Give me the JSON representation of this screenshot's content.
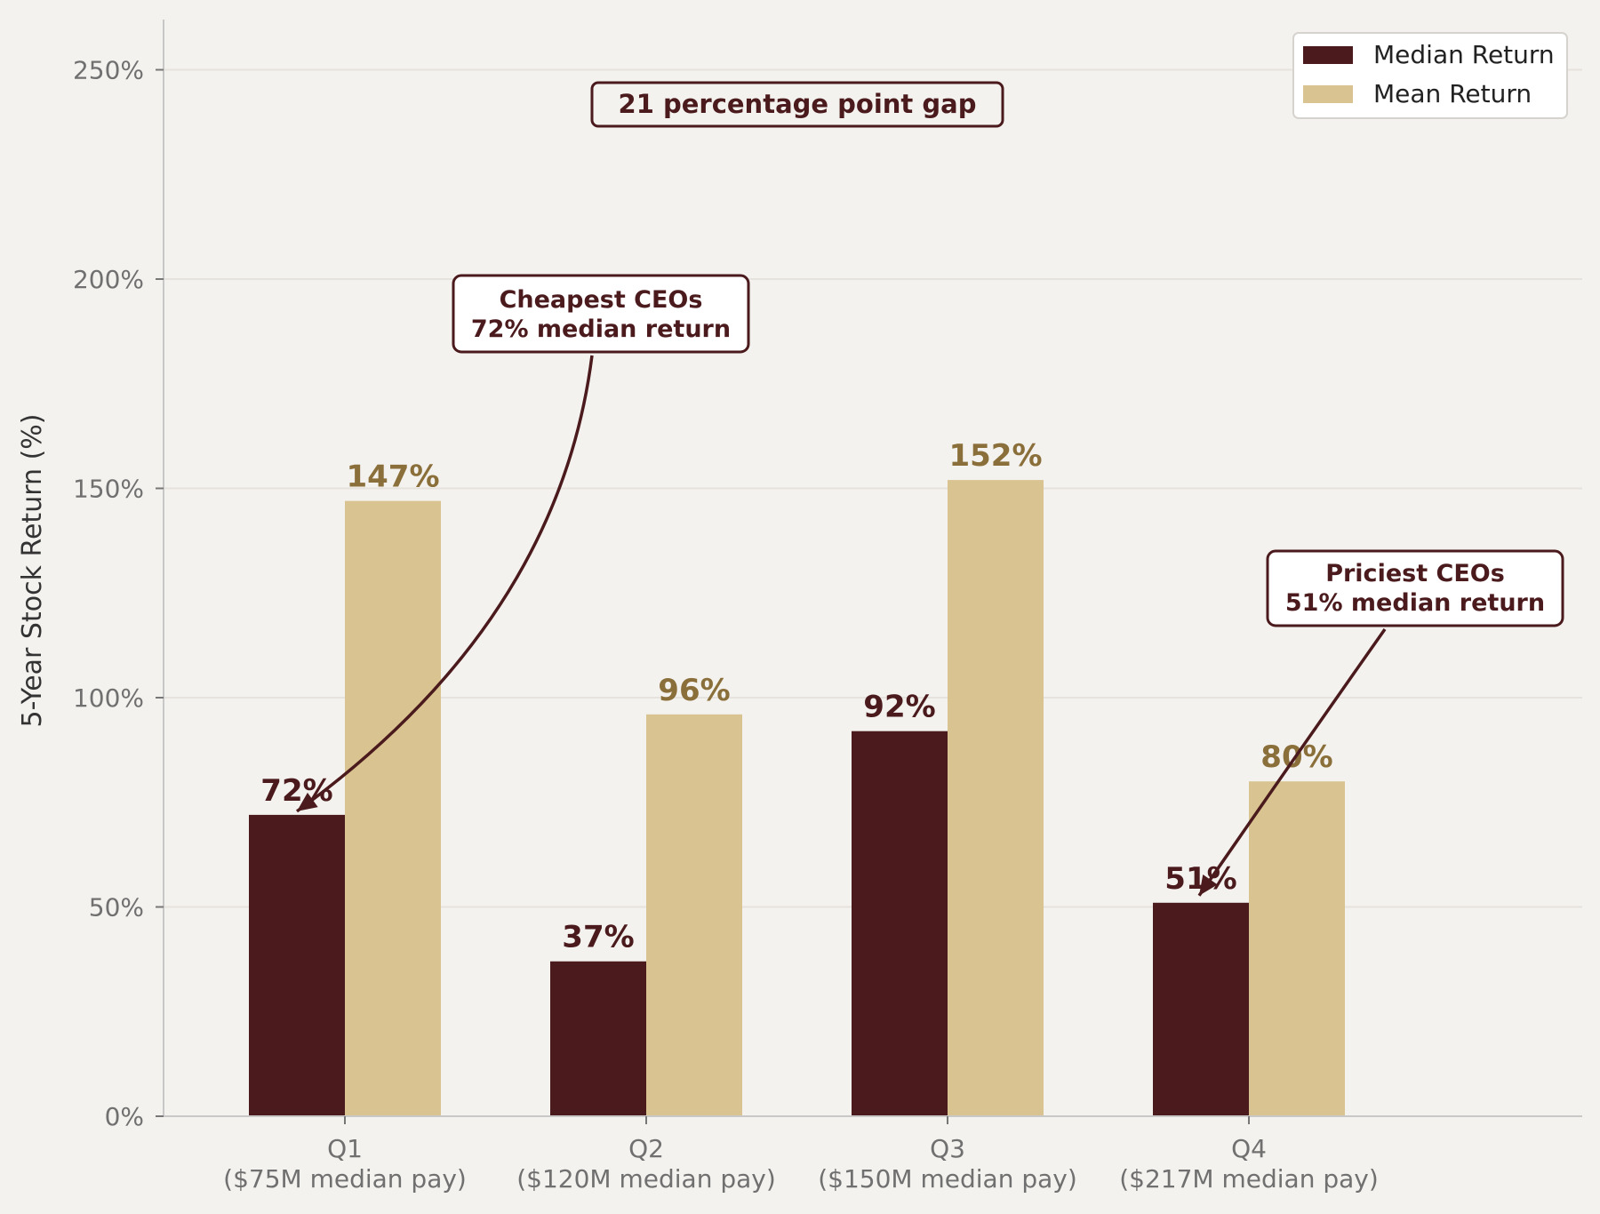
{
  "chart_data": {
    "type": "bar",
    "categories": [
      "Q1",
      "Q2",
      "Q3",
      "Q4"
    ],
    "category_sublabels": [
      "($75M median pay)",
      "($120M median pay)",
      "($150M median pay)",
      "($217M median pay)"
    ],
    "series": [
      {
        "name": "Median Return",
        "color": "#4a1a1d",
        "values": [
          72,
          37,
          92,
          51
        ],
        "labels": [
          "72%",
          "37%",
          "92%",
          "51%"
        ],
        "label_color": "#4a1a1d"
      },
      {
        "name": "Mean Return",
        "color": "#d9c491",
        "values": [
          147,
          96,
          152,
          80
        ],
        "labels": [
          "147%",
          "96%",
          "152%",
          "80%"
        ],
        "label_color": "#8a6f3a"
      }
    ],
    "ylabel": "5-Year Stock Return (%)",
    "xlabel": "",
    "ylim": [
      0,
      262
    ],
    "yticks": [
      0,
      50,
      100,
      150,
      200,
      250
    ],
    "ytick_labels": [
      "0%",
      "50%",
      "100%",
      "150%",
      "200%",
      "250%"
    ],
    "grid": "horizontal",
    "legend_position": "top-right",
    "annotations": {
      "gap": {
        "text": "21 percentage point gap"
      },
      "cheapest": {
        "line1": "Cheapest CEOs",
        "line2": "72% median return",
        "category": "Q1",
        "series": "Median Return",
        "value": 72
      },
      "priciest": {
        "line1": "Priciest CEOs",
        "line2": "51% median return",
        "category": "Q4",
        "series": "Median Return",
        "value": 51
      }
    },
    "colors": {
      "background": "#f4f2ee",
      "axis": "#c8c8c8",
      "grid": "#e6e3de",
      "annotation": "#4a1a1d"
    }
  }
}
